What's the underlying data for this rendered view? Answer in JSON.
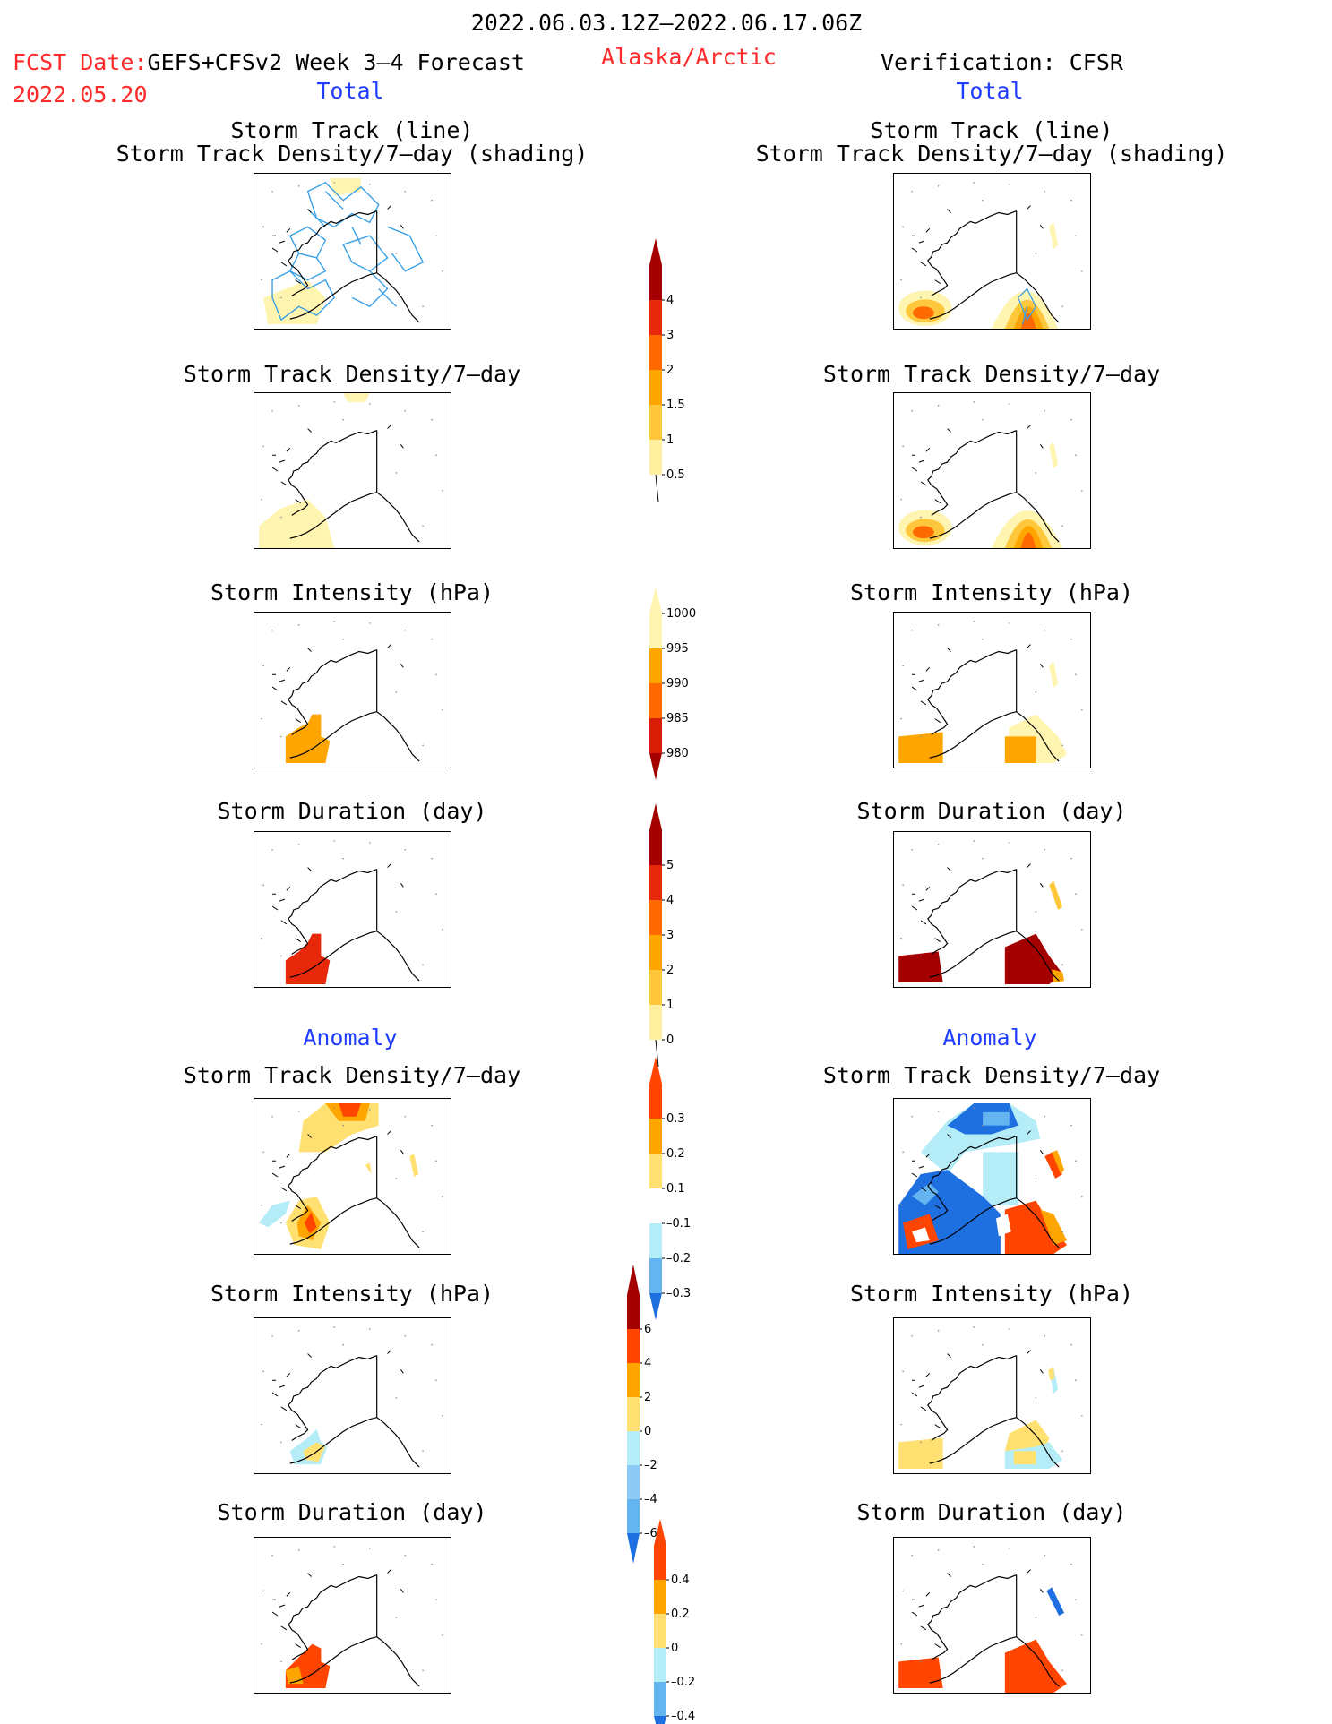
{
  "header": {
    "date_range": "2022.06.03.12Z–2022.06.17.06Z",
    "fcst_label": "FCST Date:",
    "fcst_model": "GEFS+CFSv2 Week 3–4 Forecast",
    "fcst_date": "2022.05.20",
    "region": "Alaska/Arctic",
    "verification": "Verification: CFSR"
  },
  "columns": {
    "left_total": "Total",
    "right_total": "Total",
    "left_anomaly": "Anomaly",
    "right_anomaly": "Anomaly"
  },
  "panel_titles": {
    "track_line": "Storm Track (line)",
    "track_shading": "Storm Track Density/7–day (shading)",
    "density": "Storm Track Density/7–day",
    "intensity": "Storm Intensity (hPa)",
    "duration": "Storm Duration (day)"
  },
  "colorbars": {
    "density_total": {
      "labels": [
        "4",
        "3",
        "2",
        "1.5",
        "1",
        "0.5"
      ],
      "colors": [
        "#a50000",
        "#e8280a",
        "#ff6a00",
        "#ffa500",
        "#ffc83c",
        "#fff0a0"
      ]
    },
    "intensity_total": {
      "labels": [
        "1000",
        "995",
        "990",
        "985",
        "980"
      ],
      "colors": [
        "#fff4b0",
        "#ffa500",
        "#ff6a00",
        "#d81e05",
        "#a50000"
      ]
    },
    "duration_total": {
      "labels": [
        "5",
        "4",
        "3",
        "2",
        "1",
        "0"
      ],
      "colors": [
        "#a50000",
        "#e8280a",
        "#ff6a00",
        "#ffa500",
        "#ffc83c",
        "#fff0a0"
      ]
    },
    "density_anom": {
      "labels": [
        "0.3",
        "0.2",
        "0.1",
        "–0.1",
        "–0.2",
        "–0.3"
      ],
      "colors": [
        "#ff4500",
        "#ffa500",
        "#ffe070",
        "#ffffff",
        "#b4ecf8",
        "#64b4f0",
        "#1e6fe0"
      ]
    },
    "intensity_anom": {
      "labels": [
        "6",
        "4",
        "2",
        "0",
        "–2",
        "–4",
        "–6"
      ],
      "colors": [
        "#a50000",
        "#ff4500",
        "#ffa500",
        "#ffe070",
        "#b4ecf8",
        "#8ccaf5",
        "#64b4f0",
        "#1e6fe0"
      ]
    },
    "duration_anom": {
      "labels": [
        "0.4",
        "0.2",
        "0",
        "–0.2",
        "–0.4"
      ],
      "colors": [
        "#ff4500",
        "#ffa500",
        "#ffe070",
        "#b4ecf8",
        "#64b4f0",
        "#1e6fe0"
      ]
    }
  }
}
